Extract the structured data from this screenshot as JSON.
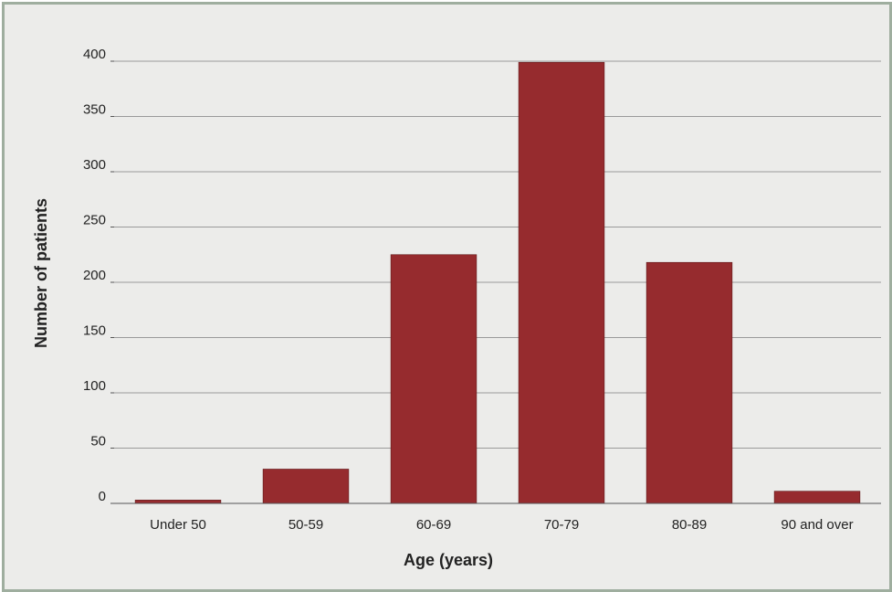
{
  "chart_data": {
    "type": "bar",
    "title": "",
    "xlabel": "Age (years)",
    "ylabel": "Number of patients",
    "categories": [
      "Under 50",
      "50-59",
      "60-69",
      "70-79",
      "80-89",
      "90 and over"
    ],
    "values": [
      3,
      31,
      225,
      399,
      218,
      11
    ],
    "ylim": [
      0,
      400
    ],
    "yticks": [
      "0",
      "50",
      "100",
      "150",
      "200",
      "250",
      "300",
      "350",
      "400"
    ],
    "grid": true,
    "legend": "none",
    "bar_color": "#962b2e"
  }
}
